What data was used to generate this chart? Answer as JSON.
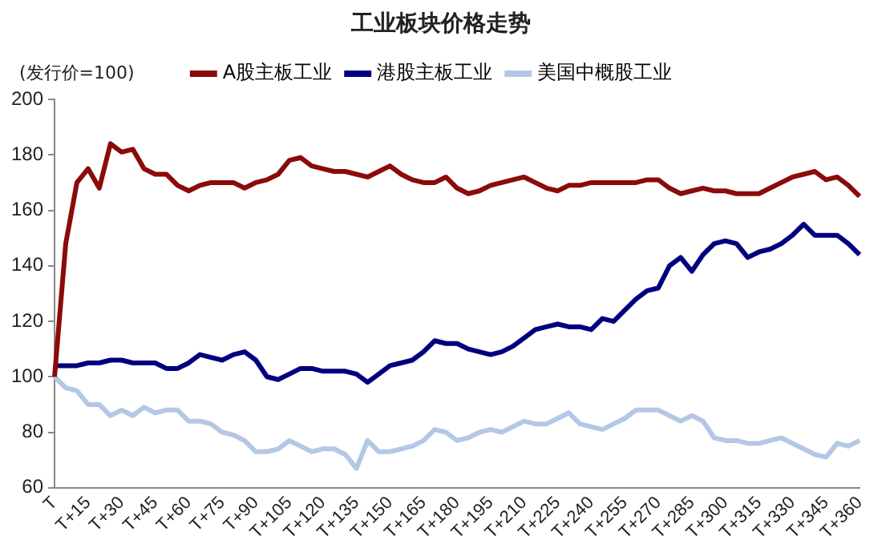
{
  "chart_data": {
    "type": "line",
    "title": "工业板块价格走势",
    "annotations": [
      "(发行价=100)"
    ],
    "legend": "top",
    "grid": false,
    "marker": "none",
    "line_style": "solid",
    "ylim": [
      60,
      200
    ],
    "yticks": [
      60,
      80,
      100,
      120,
      140,
      160,
      180,
      200
    ],
    "categories": [
      "T",
      null,
      null,
      "T+15",
      null,
      null,
      "T+30",
      null,
      null,
      "T+45",
      null,
      null,
      "T+60",
      null,
      null,
      "T+75",
      null,
      null,
      "T+90",
      null,
      null,
      "T+105",
      null,
      null,
      "T+120",
      null,
      null,
      "T+135",
      null,
      null,
      "T+150",
      null,
      null,
      "T+165",
      null,
      null,
      "T+180",
      null,
      null,
      "T+195",
      null,
      null,
      "T+210",
      null,
      null,
      "T+225",
      null,
      null,
      "T+240",
      null,
      null,
      "T+255",
      null,
      null,
      "T+270",
      null,
      null,
      "T+285",
      null,
      null,
      "T+300",
      null,
      null,
      "T+315",
      null,
      null,
      "T+330",
      null,
      null,
      "T+345",
      null,
      null,
      "T+360"
    ],
    "series": [
      {
        "name": "A股主板工业",
        "color": "#8b0a0a",
        "values": [
          100,
          148,
          170,
          175,
          168,
          184,
          181,
          182,
          175,
          173,
          173,
          169,
          167,
          169,
          170,
          170,
          170,
          168,
          170,
          171,
          173,
          178,
          179,
          176,
          175,
          174,
          174,
          173,
          172,
          174,
          176,
          173,
          171,
          170,
          170,
          172,
          168,
          166,
          167,
          169,
          170,
          171,
          172,
          170,
          168,
          167,
          169,
          169,
          170,
          170,
          170,
          170,
          170,
          171,
          171,
          168,
          166,
          167,
          168,
          167,
          167,
          166,
          166,
          166,
          168,
          170,
          172,
          173,
          174,
          171,
          172,
          169,
          165
        ]
      },
      {
        "name": "港股主板工业",
        "color": "#00007f",
        "values": [
          104,
          104,
          104,
          105,
          105,
          106,
          106,
          105,
          105,
          105,
          103,
          103,
          105,
          108,
          107,
          106,
          108,
          109,
          106,
          100,
          99,
          101,
          103,
          103,
          102,
          102,
          102,
          101,
          98,
          101,
          104,
          105,
          106,
          109,
          113,
          112,
          112,
          110,
          109,
          108,
          109,
          111,
          114,
          117,
          118,
          119,
          118,
          118,
          117,
          121,
          120,
          124,
          128,
          131,
          132,
          140,
          143,
          138,
          144,
          148,
          149,
          148,
          143,
          145,
          146,
          148,
          151,
          155,
          151,
          151,
          151,
          148,
          144
        ]
      },
      {
        "name": "美国中概股工业",
        "color": "#b4c7e7",
        "values": [
          100,
          96,
          95,
          90,
          90,
          86,
          88,
          86,
          89,
          87,
          88,
          88,
          84,
          84,
          83,
          80,
          79,
          77,
          73,
          73,
          74,
          77,
          75,
          73,
          74,
          74,
          72,
          67,
          77,
          73,
          73,
          74,
          75,
          77,
          81,
          80,
          77,
          78,
          80,
          81,
          80,
          82,
          84,
          83,
          83,
          85,
          87,
          83,
          82,
          81,
          83,
          85,
          88,
          88,
          88,
          86,
          84,
          86,
          84,
          78,
          77,
          77,
          76,
          76,
          77,
          78,
          76,
          74,
          72,
          71,
          76,
          75,
          77
        ]
      }
    ]
  }
}
